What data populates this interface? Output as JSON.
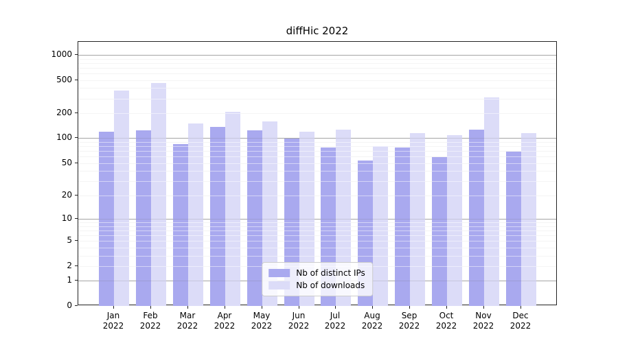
{
  "chart_data": {
    "type": "bar",
    "title": "diffHic 2022",
    "categories": [
      "Jan",
      "Feb",
      "Mar",
      "Apr",
      "May",
      "Jun",
      "Jul",
      "Aug",
      "Sep",
      "Oct",
      "Nov",
      "Dec"
    ],
    "year": "2022",
    "series": [
      {
        "name": "Nb of distinct IPs",
        "color": "#a9a9ef",
        "values": [
          119,
          124,
          85,
          137,
          124,
          100,
          77,
          54,
          77,
          59,
          126,
          69
        ]
      },
      {
        "name": "Nb of downloads",
        "color": "#dcdcf8",
        "values": [
          377,
          460,
          150,
          208,
          160,
          121,
          128,
          80,
          116,
          110,
          310,
          116
        ]
      }
    ],
    "yticks": [
      0,
      1,
      2,
      5,
      10,
      20,
      50,
      100,
      200,
      500,
      1000
    ],
    "major_gridlines": [
      1,
      10,
      100,
      1000
    ],
    "minor_gridlines": [
      2,
      3,
      4,
      5,
      6,
      7,
      8,
      9,
      20,
      30,
      40,
      50,
      60,
      70,
      80,
      90,
      200,
      300,
      400,
      500,
      600,
      700,
      800,
      900
    ],
    "scale": "log1p",
    "ylim": [
      0,
      1430
    ],
    "grid": true,
    "legend_position": "lower center",
    "xlabel": "",
    "ylabel": ""
  },
  "colors": {
    "background": "#ffffff",
    "spine": "#222222",
    "grid_minor": "#e9e9e9",
    "grid_major": "#b2b2b2",
    "text": "#000000"
  }
}
